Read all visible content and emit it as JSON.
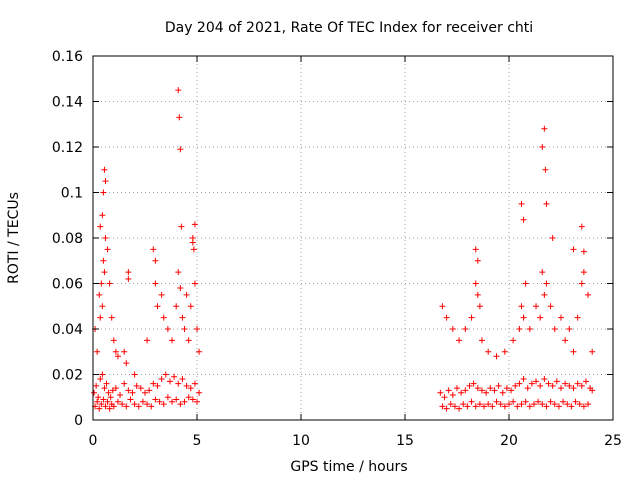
{
  "chart_data": {
    "type": "scatter",
    "title": "Day 204 of 2021, Rate Of TEC Index for receiver chti",
    "xlabel": "GPS time / hours",
    "ylabel": "ROTI / TECUs",
    "xlim": [
      0,
      25
    ],
    "ylim": [
      0,
      0.16
    ],
    "xticks": [
      0,
      5,
      10,
      15,
      20,
      25
    ],
    "xtick_labels": [
      "0",
      "5",
      "10",
      "15",
      "20",
      "25"
    ],
    "yticks": [
      0,
      0.02,
      0.04,
      0.06,
      0.08,
      0.1,
      0.12,
      0.14,
      0.16
    ],
    "ytick_labels": [
      "0",
      "0.02",
      "0.04",
      "0.06",
      "0.08",
      "0.1",
      "0.12",
      "0.14",
      "0.16"
    ],
    "grid": true,
    "marker": "+",
    "color": "#ff0000",
    "series": [
      {
        "x": [
          0.05,
          0.15,
          0.25,
          0.35,
          0.45,
          0.55,
          0.65,
          0.75,
          0.85,
          0.95,
          1.1,
          1.3,
          1.5,
          1.7,
          1.9,
          2.1,
          2.3,
          2.5,
          2.7,
          2.9,
          3.1,
          3.3,
          3.5,
          3.7,
          3.9,
          4.1,
          4.3,
          4.5,
          4.7,
          4.9,
          5.1,
          0.1,
          0.2,
          0.3,
          0.4,
          0.5,
          0.6,
          0.7,
          0.8,
          0.9,
          1.0,
          1.2,
          1.4,
          1.6,
          1.8,
          2.0,
          2.2,
          2.4,
          2.6,
          2.8,
          3.0,
          3.2,
          3.4,
          3.6,
          3.8,
          4.0,
          4.2,
          4.4,
          4.6,
          4.8,
          5.0,
          0.1,
          0.2,
          0.3,
          0.35,
          0.4,
          0.45,
          0.5,
          0.55,
          0.6,
          0.7,
          0.8,
          0.9,
          1.0,
          1.1,
          1.2,
          1.5,
          1.6,
          1.7,
          2.0,
          2.6,
          2.9,
          3.0,
          3.1,
          3.3,
          3.4,
          3.6,
          3.8,
          4.0,
          4.1,
          4.2,
          4.3,
          4.4,
          4.5,
          4.6,
          4.7,
          4.8,
          4.9,
          5.0,
          5.1,
          0.35,
          0.45,
          0.5,
          0.55,
          0.6,
          1.7,
          3.0,
          4.1,
          4.15,
          4.2,
          4.25,
          4.8,
          4.85,
          4.9,
          16.7,
          16.9,
          17.1,
          17.3,
          17.5,
          17.7,
          17.9,
          18.1,
          18.3,
          18.5,
          18.7,
          18.9,
          19.1,
          19.3,
          19.5,
          19.7,
          19.9,
          20.1,
          20.3,
          20.5,
          20.7,
          20.9,
          21.1,
          21.3,
          21.5,
          21.7,
          21.9,
          22.1,
          22.3,
          22.5,
          22.7,
          22.9,
          23.1,
          23.3,
          23.5,
          23.7,
          23.9,
          24.0,
          16.8,
          17.0,
          17.2,
          17.4,
          17.6,
          17.8,
          18.0,
          18.2,
          18.4,
          18.6,
          18.8,
          19.0,
          19.2,
          19.4,
          19.6,
          19.8,
          20.0,
          20.2,
          20.4,
          20.6,
          20.8,
          21.0,
          21.2,
          21.4,
          21.6,
          21.8,
          22.0,
          22.2,
          22.4,
          22.6,
          22.8,
          23.0,
          23.2,
          23.4,
          23.6,
          23.8,
          16.8,
          17.0,
          17.3,
          17.6,
          17.9,
          18.2,
          18.4,
          18.5,
          18.6,
          18.7,
          19.0,
          19.4,
          19.8,
          20.2,
          20.5,
          20.6,
          20.7,
          20.8,
          21.0,
          21.3,
          21.5,
          21.6,
          21.7,
          21.8,
          22.0,
          22.2,
          22.5,
          22.7,
          22.9,
          23.1,
          23.3,
          23.5,
          23.6,
          23.8,
          24.0,
          18.4,
          18.5,
          20.6,
          20.7,
          21.6,
          21.7,
          21.75,
          21.8,
          22.1,
          23.1,
          23.5,
          23.6
        ],
        "y": [
          0.012,
          0.015,
          0.01,
          0.018,
          0.02,
          0.014,
          0.016,
          0.012,
          0.01,
          0.013,
          0.014,
          0.011,
          0.016,
          0.013,
          0.012,
          0.015,
          0.014,
          0.012,
          0.013,
          0.016,
          0.015,
          0.018,
          0.02,
          0.017,
          0.019,
          0.016,
          0.018,
          0.015,
          0.014,
          0.016,
          0.012,
          0.006,
          0.008,
          0.005,
          0.007,
          0.009,
          0.006,
          0.008,
          0.005,
          0.007,
          0.006,
          0.008,
          0.007,
          0.006,
          0.009,
          0.007,
          0.006,
          0.008,
          0.007,
          0.006,
          0.009,
          0.008,
          0.007,
          0.01,
          0.008,
          0.009,
          0.007,
          0.008,
          0.01,
          0.009,
          0.008,
          0.04,
          0.03,
          0.055,
          0.045,
          0.06,
          0.05,
          0.07,
          0.065,
          0.08,
          0.075,
          0.06,
          0.045,
          0.035,
          0.03,
          0.028,
          0.03,
          0.025,
          0.062,
          0.02,
          0.035,
          0.075,
          0.06,
          0.05,
          0.055,
          0.045,
          0.04,
          0.035,
          0.05,
          0.065,
          0.058,
          0.045,
          0.04,
          0.055,
          0.035,
          0.05,
          0.078,
          0.06,
          0.04,
          0.03,
          0.085,
          0.09,
          0.1,
          0.11,
          0.105,
          0.065,
          0.07,
          0.145,
          0.133,
          0.119,
          0.085,
          0.08,
          0.075,
          0.086,
          0.012,
          0.01,
          0.013,
          0.011,
          0.014,
          0.012,
          0.013,
          0.015,
          0.016,
          0.014,
          0.013,
          0.012,
          0.014,
          0.013,
          0.015,
          0.012,
          0.014,
          0.013,
          0.015,
          0.016,
          0.018,
          0.014,
          0.016,
          0.017,
          0.015,
          0.018,
          0.016,
          0.015,
          0.017,
          0.014,
          0.016,
          0.015,
          0.014,
          0.016,
          0.015,
          0.017,
          0.014,
          0.013,
          0.006,
          0.005,
          0.007,
          0.006,
          0.005,
          0.007,
          0.006,
          0.008,
          0.006,
          0.007,
          0.006,
          0.007,
          0.006,
          0.008,
          0.007,
          0.006,
          0.007,
          0.008,
          0.006,
          0.007,
          0.008,
          0.006,
          0.007,
          0.008,
          0.007,
          0.006,
          0.008,
          0.007,
          0.006,
          0.008,
          0.007,
          0.006,
          0.008,
          0.007,
          0.006,
          0.007,
          0.05,
          0.045,
          0.04,
          0.035,
          0.04,
          0.045,
          0.06,
          0.055,
          0.05,
          0.035,
          0.03,
          0.028,
          0.03,
          0.035,
          0.04,
          0.05,
          0.045,
          0.06,
          0.04,
          0.05,
          0.045,
          0.065,
          0.055,
          0.06,
          0.05,
          0.04,
          0.045,
          0.035,
          0.04,
          0.03,
          0.045,
          0.06,
          0.065,
          0.055,
          0.03,
          0.075,
          0.07,
          0.095,
          0.088,
          0.12,
          0.128,
          0.11,
          0.095,
          0.08,
          0.075,
          0.085,
          0.074
        ]
      }
    ]
  }
}
